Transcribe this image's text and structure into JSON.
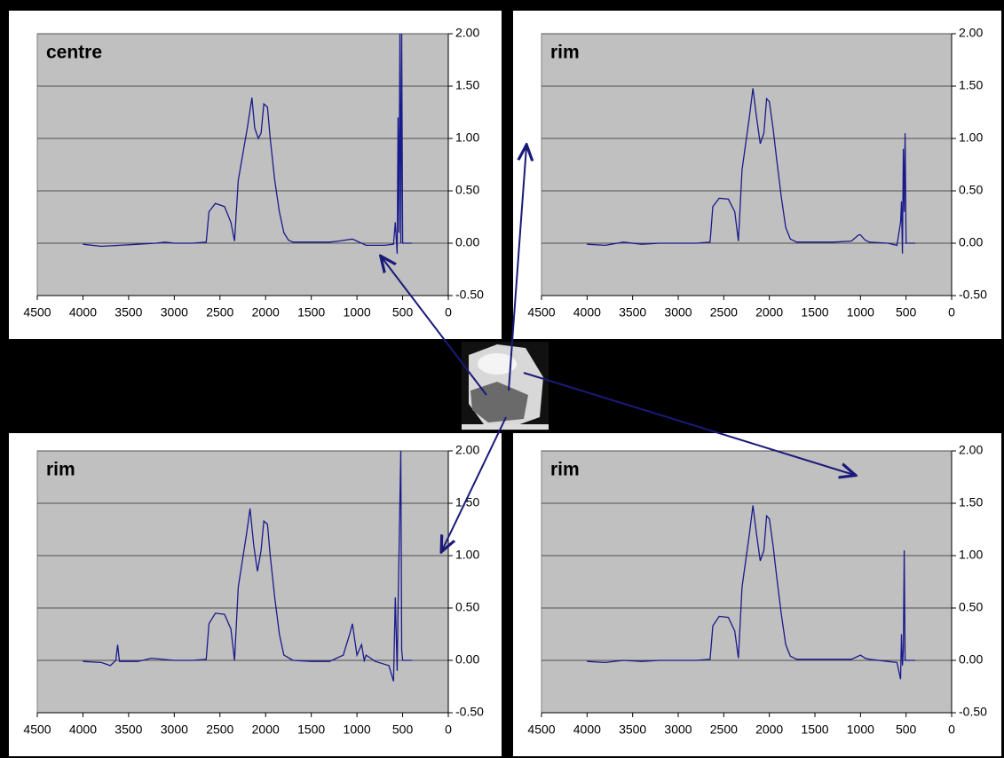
{
  "chart_data": [
    {
      "type": "line",
      "title": "centre",
      "color": "#1a1a8c",
      "x": [
        4000,
        3800,
        3600,
        3400,
        3200,
        3100,
        3000,
        2800,
        2650,
        2620,
        2550,
        2450,
        2380,
        2340,
        2300,
        2200,
        2150,
        2120,
        2080,
        2050,
        2020,
        1980,
        1950,
        1900,
        1850,
        1800,
        1750,
        1700,
        1500,
        1300,
        1200,
        1050,
        1000,
        900,
        700,
        600,
        580,
        560,
        550,
        540,
        530,
        520,
        510,
        500,
        450,
        400
      ],
      "values": [
        -0.01,
        -0.03,
        -0.02,
        -0.01,
        0,
        0.01,
        0,
        0,
        0.01,
        0.3,
        0.38,
        0.35,
        0.2,
        0.02,
        0.6,
        1.1,
        1.39,
        1.1,
        1.0,
        1.05,
        1.33,
        1.3,
        1.0,
        0.6,
        0.3,
        0.1,
        0.03,
        0.01,
        0.01,
        0.01,
        0.02,
        0.04,
        0.02,
        -0.02,
        -0.02,
        -0.01,
        0.2,
        -0.1,
        1.2,
        0.1,
        2.0,
        0,
        2.0,
        0,
        0,
        0
      ],
      "xlim": [
        4500,
        0
      ],
      "ylim": [
        -0.5,
        2
      ],
      "xticks": [
        4500,
        4000,
        3500,
        3000,
        2500,
        2000,
        1500,
        1000,
        500,
        0
      ],
      "yticks": [
        {
          "value": -0.5,
          "label": "-0.50"
        },
        {
          "value": 0,
          "label": "0.00"
        },
        {
          "value": 0.5,
          "label": "0.50"
        },
        {
          "value": 1,
          "label": "1.00"
        },
        {
          "value": 1.5,
          "label": "1.50"
        },
        {
          "value": 2,
          "label": "2.00"
        }
      ],
      "grid": true
    },
    {
      "type": "line",
      "title": "rim",
      "color": "#1a1a8c",
      "x": [
        4000,
        3800,
        3600,
        3400,
        3200,
        3000,
        2800,
        2650,
        2620,
        2550,
        2450,
        2380,
        2340,
        2300,
        2220,
        2180,
        2140,
        2100,
        2060,
        2030,
        2000,
        1960,
        1920,
        1870,
        1820,
        1770,
        1700,
        1500,
        1300,
        1100,
        1020,
        1000,
        950,
        900,
        700,
        600,
        560,
        550,
        540,
        530,
        520,
        510,
        500,
        450,
        400
      ],
      "values": [
        -0.01,
        -0.02,
        0.01,
        -0.01,
        0,
        0,
        0,
        0.01,
        0.35,
        0.43,
        0.42,
        0.3,
        0.02,
        0.7,
        1.2,
        1.48,
        1.2,
        0.95,
        1.05,
        1.38,
        1.35,
        1.1,
        0.8,
        0.45,
        0.15,
        0.04,
        0.01,
        0.01,
        0.01,
        0.02,
        0.08,
        0.08,
        0.03,
        0.01,
        0,
        -0.02,
        0.2,
        0.4,
        -0.1,
        0.9,
        0.3,
        1.05,
        0,
        0,
        0
      ],
      "xlim": [
        4500,
        0
      ],
      "ylim": [
        -0.5,
        2
      ],
      "xticks": [
        4500,
        4000,
        3500,
        3000,
        2500,
        2000,
        1500,
        1000,
        500,
        0
      ],
      "yticks": [
        {
          "value": -0.5,
          "label": "-0.50"
        },
        {
          "value": 0,
          "label": "0.00"
        },
        {
          "value": 0.5,
          "label": "0.50"
        },
        {
          "value": 1,
          "label": "1.00"
        },
        {
          "value": 1.5,
          "label": "1.50"
        },
        {
          "value": 2,
          "label": "2.00"
        }
      ],
      "grid": true
    },
    {
      "type": "line",
      "title": "rim",
      "color": "#1a1a8c",
      "x": [
        4000,
        3800,
        3700,
        3640,
        3620,
        3600,
        3400,
        3250,
        3000,
        2800,
        2650,
        2620,
        2550,
        2450,
        2380,
        2340,
        2300,
        2210,
        2170,
        2130,
        2090,
        2050,
        2020,
        1980,
        1950,
        1900,
        1850,
        1800,
        1700,
        1500,
        1300,
        1150,
        1080,
        1050,
        1000,
        950,
        920,
        900,
        800,
        650,
        600,
        580,
        560,
        550,
        520,
        510,
        500,
        450,
        400
      ],
      "values": [
        -0.01,
        -0.02,
        -0.05,
        0.0,
        0.15,
        -0.01,
        -0.01,
        0.02,
        0,
        0,
        0.01,
        0.35,
        0.45,
        0.44,
        0.3,
        0.0,
        0.7,
        1.2,
        1.45,
        1.1,
        0.85,
        1.05,
        1.33,
        1.3,
        1.0,
        0.6,
        0.25,
        0.05,
        0.0,
        -0.01,
        -0.01,
        0.05,
        0.25,
        0.35,
        0.05,
        0.15,
        0.0,
        0.05,
        -0.01,
        -0.05,
        -0.2,
        0.6,
        -0.1,
        0.5,
        2.0,
        0.1,
        0,
        0,
        0
      ],
      "xlim": [
        4500,
        0
      ],
      "ylim": [
        -0.5,
        2
      ],
      "xticks": [
        4500,
        4000,
        3500,
        3000,
        2500,
        2000,
        1500,
        1000,
        500,
        0
      ],
      "yticks": [
        {
          "value": -0.5,
          "label": "-0.50"
        },
        {
          "value": 0,
          "label": "0.00"
        },
        {
          "value": 0.5,
          "label": "0.50"
        },
        {
          "value": 1,
          "label": "1.00"
        },
        {
          "value": 1.5,
          "label": "1.50"
        },
        {
          "value": 2,
          "label": "2.00"
        }
      ],
      "grid": true
    },
    {
      "type": "line",
      "title": "rim",
      "color": "#1a1a8c",
      "x": [
        4000,
        3800,
        3600,
        3400,
        3200,
        3000,
        2800,
        2650,
        2620,
        2550,
        2450,
        2380,
        2340,
        2300,
        2220,
        2180,
        2140,
        2100,
        2060,
        2030,
        2000,
        1960,
        1920,
        1870,
        1820,
        1770,
        1700,
        1500,
        1300,
        1100,
        1000,
        950,
        900,
        700,
        600,
        560,
        550,
        540,
        530,
        520,
        510,
        500,
        450,
        400
      ],
      "values": [
        -0.01,
        -0.02,
        0.0,
        -0.01,
        0,
        0,
        0,
        0.01,
        0.33,
        0.42,
        0.41,
        0.28,
        0.02,
        0.7,
        1.2,
        1.48,
        1.2,
        0.95,
        1.05,
        1.38,
        1.35,
        1.1,
        0.8,
        0.45,
        0.15,
        0.04,
        0.01,
        0.01,
        0.01,
        0.01,
        0.05,
        0.02,
        0.01,
        -0.01,
        -0.02,
        -0.18,
        0.25,
        -0.05,
        0.1,
        1.05,
        0.0,
        0,
        0,
        0
      ],
      "xlim": [
        4500,
        0
      ],
      "ylim": [
        -0.5,
        2
      ],
      "xticks": [
        4500,
        4000,
        3500,
        3000,
        2500,
        2000,
        1500,
        1000,
        500,
        0
      ],
      "yticks": [
        {
          "value": -0.5,
          "label": "-0.50"
        },
        {
          "value": 0,
          "label": "0.00"
        },
        {
          "value": 0.5,
          "label": "0.50"
        },
        {
          "value": 1,
          "label": "1.00"
        },
        {
          "value": 1.5,
          "label": "1.50"
        },
        {
          "value": 2,
          "label": "2.00"
        }
      ],
      "grid": true
    }
  ]
}
